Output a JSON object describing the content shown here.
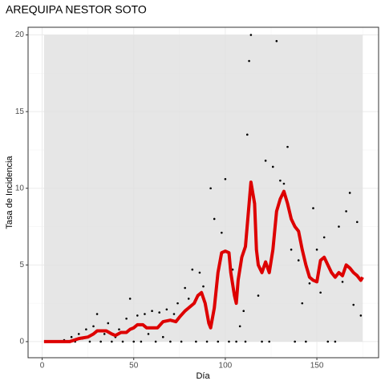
{
  "chart_data": {
    "type": "scatter",
    "title": "AREQUIPA NESTOR SOTO",
    "xlabel": "Día",
    "ylabel": "Tasa de Incidencia",
    "xlim": [
      -7.7,
      183.7
    ],
    "ylim": [
      -1.05,
      20.5
    ],
    "xticks": [
      0,
      50,
      100,
      150
    ],
    "yticks": [
      0,
      5,
      10,
      15,
      20
    ],
    "xminor": [
      25,
      75,
      125,
      175
    ],
    "yminor": [
      2.5,
      7.5,
      12.5,
      17.5
    ],
    "grid": true,
    "band": {
      "x": [
        1,
        175
      ],
      "y": [
        0,
        20
      ],
      "color": "#e0e0e0"
    },
    "points": {
      "color": "#000000",
      "x": [
        2,
        4,
        6,
        8,
        10,
        12,
        14,
        16,
        18,
        20,
        22,
        24,
        26,
        28,
        30,
        32,
        34,
        36,
        38,
        40,
        42,
        44,
        46,
        48,
        50,
        52,
        54,
        56,
        58,
        60,
        62,
        64,
        66,
        68,
        70,
        72,
        74,
        76,
        78,
        80,
        82,
        84,
        86,
        88,
        90,
        92,
        94,
        96,
        98,
        100,
        102,
        104,
        106,
        108,
        110,
        111,
        112,
        113,
        114,
        116,
        118,
        120,
        122,
        124,
        126,
        128,
        129,
        130,
        132,
        134,
        136,
        138,
        140,
        142,
        144,
        146,
        148,
        150,
        152,
        154,
        156,
        158,
        160,
        162,
        164,
        166,
        168,
        170,
        172,
        174
      ],
      "y": [
        0,
        0,
        0,
        0,
        0,
        0.1,
        0,
        0.3,
        0,
        0.5,
        0.2,
        0.8,
        0,
        1.0,
        1.8,
        0,
        0.5,
        1.2,
        0,
        0.3,
        0.8,
        0,
        1.5,
        2.8,
        0,
        1.7,
        0,
        1.8,
        0.5,
        2.0,
        0,
        1.9,
        0.3,
        2.1,
        0,
        1.8,
        2.5,
        0,
        3.5,
        2.8,
        4.7,
        0,
        4.5,
        3.6,
        0,
        10.0,
        8.0,
        0,
        7.1,
        10.6,
        0,
        4.7,
        0,
        1.0,
        2.0,
        0,
        13.5,
        18.3,
        20.0,
        8.7,
        3.0,
        0,
        11.8,
        0,
        11.4,
        19.6,
        8.8,
        10.5,
        10.3,
        12.7,
        6.0,
        0,
        5.3,
        2.5,
        0,
        3.8,
        8.7,
        6.0,
        3.2,
        6.8,
        0,
        4.5,
        0,
        7.5,
        3.9,
        8.5,
        9.7,
        2.4,
        7.8,
        1.7
      ]
    },
    "series": [
      {
        "name": "smooth",
        "color": "#dd0000",
        "x": [
          1,
          5,
          10,
          15,
          20,
          25,
          28,
          30,
          35,
          38,
          40,
          43,
          46,
          48,
          50,
          52,
          55,
          57,
          60,
          63,
          66,
          70,
          73,
          75,
          78,
          80,
          83,
          85,
          87,
          89,
          91,
          92,
          94,
          96,
          98,
          100,
          102,
          103,
          105,
          106,
          107,
          109,
          111,
          113,
          114,
          116,
          117,
          118,
          120,
          122,
          124,
          126,
          128,
          130,
          132,
          134,
          136,
          138,
          140,
          142,
          144,
          146,
          148,
          150,
          152,
          154,
          156,
          158,
          160,
          162,
          164,
          166,
          168,
          170,
          172,
          174,
          175
        ],
        "values": [
          0,
          0,
          0,
          0,
          0.2,
          0.3,
          0.5,
          0.7,
          0.7,
          0.5,
          0.4,
          0.6,
          0.6,
          0.8,
          0.9,
          1.1,
          1.1,
          0.9,
          0.9,
          0.9,
          1.3,
          1.4,
          1.3,
          1.6,
          2.0,
          2.2,
          2.5,
          3.0,
          3.2,
          2.5,
          1.2,
          0.9,
          2.2,
          4.5,
          5.8,
          5.9,
          5.8,
          4.5,
          3.0,
          2.5,
          4.0,
          5.5,
          6.2,
          9.0,
          10.4,
          9.0,
          6.0,
          5.0,
          4.5,
          5.2,
          4.5,
          6.0,
          8.5,
          9.3,
          9.8,
          9.0,
          8.0,
          7.5,
          7.2,
          6.0,
          5.0,
          4.2,
          4.0,
          3.9,
          5.3,
          5.5,
          5.0,
          4.5,
          4.2,
          4.5,
          4.3,
          5.0,
          4.8,
          4.5,
          4.3,
          4.0,
          4.2
        ]
      }
    ]
  }
}
